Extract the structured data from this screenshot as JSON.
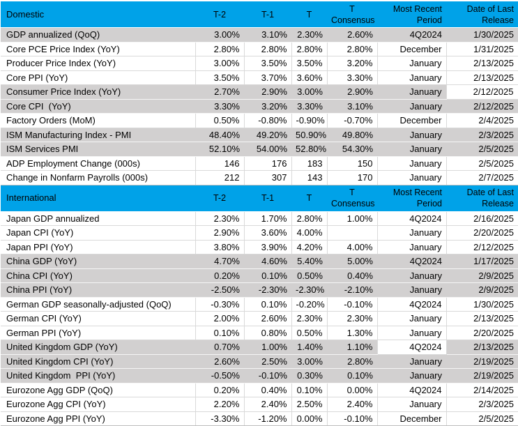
{
  "colors": {
    "header_bg": "#00A2E8",
    "shaded_row_bg": "#D2D0D0",
    "gridline": "#D9D9D9",
    "text": "#000000"
  },
  "columns": {
    "t2": "T-2",
    "t1": "T-1",
    "t": "T",
    "consensus": "T Consensus",
    "period": "Most Recent Period",
    "date": "Date of Last Release"
  },
  "sections": [
    {
      "title": "Domestic",
      "rows": [
        {
          "label": "GDP annualized (QoQ)",
          "t2": "3.00%",
          "t1": "3.10%",
          "t": "2.30%",
          "consensus": "2.60%",
          "period": "4Q2024",
          "date": "1/30/2025",
          "shade": "gray"
        },
        {
          "label": "Core PCE Price Index (YoY)",
          "t2": "2.80%",
          "t1": "2.80%",
          "t": "2.80%",
          "consensus": "2.80%",
          "period": "December",
          "date": "1/31/2025",
          "shade": "white"
        },
        {
          "label": "Producer Price Index (YoY)",
          "t2": "3.00%",
          "t1": "3.50%",
          "t": "3.50%",
          "consensus": "3.20%",
          "period": "January",
          "date": "2/13/2025",
          "shade": "white"
        },
        {
          "label": "Core PPI (YoY)",
          "t2": "3.50%",
          "t1": "3.70%",
          "t": "3.60%",
          "consensus": "3.30%",
          "period": "January",
          "date": "2/13/2025",
          "shade": "white"
        },
        {
          "label": "Consumer Price Index (YoY)",
          "t2": "2.70%",
          "t1": "2.90%",
          "t": "3.00%",
          "consensus": "2.90%",
          "period": "January",
          "date": "2/12/2025",
          "shade": "gray",
          "highlight": "date"
        },
        {
          "label": "Core CPI  (YoY)",
          "t2": "3.30%",
          "t1": "3.20%",
          "t": "3.30%",
          "consensus": "3.10%",
          "period": "January",
          "date": "2/12/2025",
          "shade": "gray"
        },
        {
          "label": "Factory Orders (MoM)",
          "t2": "0.50%",
          "t1": "-0.80%",
          "t": "-0.90%",
          "consensus": "-0.70%",
          "period": "December",
          "date": "2/4/2025",
          "shade": "white"
        },
        {
          "label": "ISM Manufacturing Index - PMI",
          "t2": "48.40%",
          "t1": "49.20%",
          "t": "50.90%",
          "consensus": "49.80%",
          "period": "January",
          "date": "2/3/2025",
          "shade": "gray"
        },
        {
          "label": "ISM Services PMI",
          "t2": "52.10%",
          "t1": "54.00%",
          "t": "52.80%",
          "consensus": "54.30%",
          "period": "January",
          "date": "2/5/2025",
          "shade": "gray"
        },
        {
          "label": "ADP Employment Change (000s)",
          "t2": "146",
          "t1": "176",
          "t": "183",
          "consensus": "150",
          "period": "January",
          "date": "2/5/2025",
          "shade": "white"
        },
        {
          "label": "Change in Nonfarm Payrolls (000s)",
          "t2": "212",
          "t1": "307",
          "t": "143",
          "consensus": "170",
          "period": "January",
          "date": "2/7/2025",
          "shade": "white"
        }
      ]
    },
    {
      "title": "International",
      "rows": [
        {
          "label": "Japan GDP annualized",
          "t2": "2.30%",
          "t1": "1.70%",
          "t": "2.80%",
          "consensus": "1.00%",
          "period": "4Q2024",
          "date": "2/16/2025",
          "shade": "white"
        },
        {
          "label": "Japan CPI (YoY)",
          "t2": "2.90%",
          "t1": "3.60%",
          "t": "4.00%",
          "consensus": "",
          "period": "January",
          "date": "2/20/2025",
          "shade": "white"
        },
        {
          "label": "Japan PPI (YoY)",
          "t2": "3.80%",
          "t1": "3.90%",
          "t": "4.20%",
          "consensus": "4.00%",
          "period": "January",
          "date": "2/12/2025",
          "shade": "white"
        },
        {
          "label": "China GDP (YoY)",
          "t2": "4.70%",
          "t1": "4.60%",
          "t": "5.40%",
          "consensus": "5.00%",
          "period": "4Q2024",
          "date": "1/17/2025",
          "shade": "gray"
        },
        {
          "label": "China CPI (YoY)",
          "t2": "0.20%",
          "t1": "0.10%",
          "t": "0.50%",
          "consensus": "0.40%",
          "period": "January",
          "date": "2/9/2025",
          "shade": "gray"
        },
        {
          "label": "China PPI (YoY)",
          "t2": "-2.50%",
          "t1": "-2.30%",
          "t": "-2.30%",
          "consensus": "-2.10%",
          "period": "January",
          "date": "2/9/2025",
          "shade": "gray"
        },
        {
          "label": "German GDP seasonally-adjusted (QoQ)",
          "t2": "-0.30%",
          "t1": "0.10%",
          "t": "-0.20%",
          "consensus": "-0.10%",
          "period": "4Q2024",
          "date": "1/30/2025",
          "shade": "white"
        },
        {
          "label": "German CPI (YoY)",
          "t2": "2.00%",
          "t1": "2.60%",
          "t": "2.30%",
          "consensus": "2.30%",
          "period": "January",
          "date": "2/13/2025",
          "shade": "white"
        },
        {
          "label": "German PPI (YoY)",
          "t2": "0.10%",
          "t1": "0.80%",
          "t": "0.50%",
          "consensus": "1.30%",
          "period": "January",
          "date": "2/20/2025",
          "shade": "white"
        },
        {
          "label": "United Kingdom GDP (YoY)",
          "t2": "0.70%",
          "t1": "1.00%",
          "t": "1.40%",
          "consensus": "1.10%",
          "period": "4Q2024",
          "date": "2/13/2025",
          "shade": "gray",
          "highlight": "period"
        },
        {
          "label": "United Kingdom CPI (YoY)",
          "t2": "2.60%",
          "t1": "2.50%",
          "t": "3.00%",
          "consensus": "2.80%",
          "period": "January",
          "date": "2/19/2025",
          "shade": "gray"
        },
        {
          "label": "United Kingdom  PPI (YoY)",
          "t2": "-0.50%",
          "t1": "-0.10%",
          "t": "0.30%",
          "consensus": "0.10%",
          "period": "January",
          "date": "2/19/2025",
          "shade": "gray"
        },
        {
          "label": "Eurozone Agg GDP (QoQ)",
          "t2": "0.20%",
          "t1": "0.40%",
          "t": "0.10%",
          "consensus": "0.00%",
          "period": "4Q2024",
          "date": "2/14/2025",
          "shade": "white"
        },
        {
          "label": "Eurozone Agg CPI (YoY)",
          "t2": "2.20%",
          "t1": "2.40%",
          "t": "2.50%",
          "consensus": "2.40%",
          "period": "January",
          "date": "2/3/2025",
          "shade": "white"
        },
        {
          "label": "Eurozone Agg PPI (YoY)",
          "t2": "-3.30%",
          "t1": "-1.20%",
          "t": "0.00%",
          "consensus": "-0.10%",
          "period": "December",
          "date": "2/5/2025",
          "shade": "white"
        }
      ]
    }
  ]
}
